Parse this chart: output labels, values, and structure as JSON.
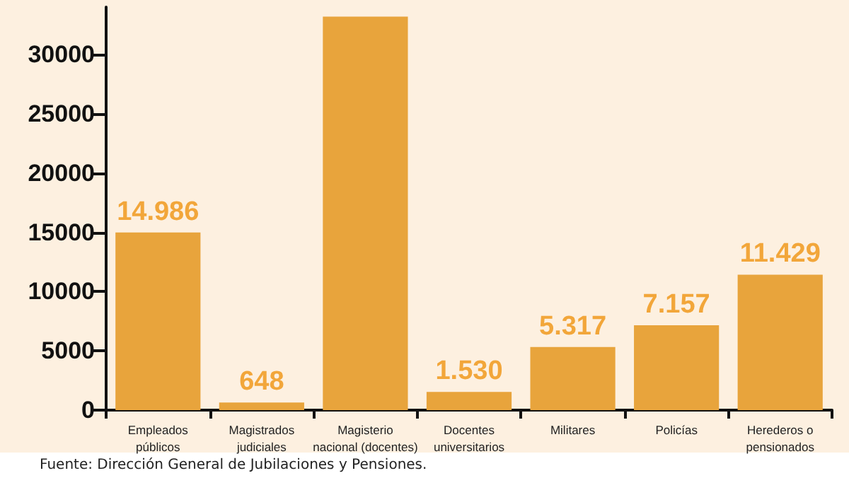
{
  "chart_data": {
    "type": "bar",
    "categories": [
      "Empleados\npúblicos",
      "Magistrados\njudiciales",
      "Magisterio\nnacional (docentes)",
      "Docentes\nuniversitarios",
      "Militares",
      "Policías",
      "Herederos o\npensionados"
    ],
    "values": [
      14986,
      648,
      33200,
      1530,
      5317,
      7157,
      11429
    ],
    "value_labels": [
      "14.986",
      "648",
      null,
      "1.530",
      "5.317",
      "7.157",
      "11.429"
    ],
    "color": "#e8a43c",
    "ylim": [
      0,
      34000
    ],
    "yticks": [
      0,
      5000,
      10000,
      15000,
      20000,
      25000,
      30000
    ],
    "grid": false,
    "annotations": [
      "Fuente: Dirección General de Jubilaciones y Pensiones."
    ]
  }
}
